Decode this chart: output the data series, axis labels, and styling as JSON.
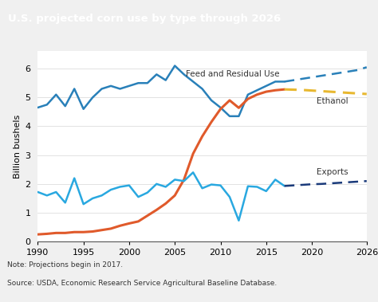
{
  "title": "U.S. projected corn use by type through 2026",
  "title_bg_color": "#0d4a5e",
  "title_text_color": "#ffffff",
  "ylabel": "Billion bushels",
  "note": "Note: Projections begin in 2017.\nSource: USDA, Economic Research Service Agricultural Baseline Database.",
  "xlim": [
    1990,
    2026
  ],
  "ylim": [
    0,
    6.6
  ],
  "yticks": [
    0,
    1,
    2,
    3,
    4,
    5,
    6
  ],
  "xticks": [
    1990,
    1995,
    2000,
    2005,
    2010,
    2015,
    2020,
    2026
  ],
  "projection_start": 2017,
  "feed_years": [
    1990,
    1991,
    1992,
    1993,
    1994,
    1995,
    1996,
    1997,
    1998,
    1999,
    2000,
    2001,
    2002,
    2003,
    2004,
    2005,
    2006,
    2007,
    2008,
    2009,
    2010,
    2011,
    2012,
    2013,
    2014,
    2015,
    2016,
    2017,
    2018,
    2019,
    2020,
    2021,
    2022,
    2023,
    2024,
    2025,
    2026
  ],
  "feed_values": [
    4.65,
    4.75,
    5.1,
    4.7,
    5.3,
    4.6,
    5.0,
    5.3,
    5.4,
    5.3,
    5.4,
    5.5,
    5.5,
    5.8,
    5.6,
    6.1,
    5.8,
    5.55,
    5.3,
    4.9,
    4.65,
    4.35,
    4.35,
    5.1,
    5.25,
    5.4,
    5.55,
    5.55,
    5.6,
    5.65,
    5.7,
    5.75,
    5.8,
    5.85,
    5.9,
    5.95,
    6.05
  ],
  "ethanol_years": [
    1990,
    1991,
    1992,
    1993,
    1994,
    1995,
    1996,
    1997,
    1998,
    1999,
    2000,
    2001,
    2002,
    2003,
    2004,
    2005,
    2006,
    2007,
    2008,
    2009,
    2010,
    2011,
    2012,
    2013,
    2014,
    2015,
    2016,
    2017,
    2018,
    2019,
    2020,
    2021,
    2022,
    2023,
    2024,
    2025,
    2026
  ],
  "ethanol_values": [
    0.25,
    0.27,
    0.3,
    0.3,
    0.33,
    0.33,
    0.35,
    0.4,
    0.45,
    0.55,
    0.63,
    0.7,
    0.9,
    1.1,
    1.32,
    1.6,
    2.15,
    3.05,
    3.65,
    4.15,
    4.6,
    4.9,
    4.64,
    4.95,
    5.1,
    5.2,
    5.25,
    5.28,
    5.27,
    5.26,
    5.24,
    5.22,
    5.2,
    5.18,
    5.16,
    5.14,
    5.12
  ],
  "exports_years": [
    1990,
    1991,
    1992,
    1993,
    1994,
    1995,
    1996,
    1997,
    1998,
    1999,
    2000,
    2001,
    2002,
    2003,
    2004,
    2005,
    2006,
    2007,
    2008,
    2009,
    2010,
    2011,
    2012,
    2013,
    2014,
    2015,
    2016,
    2017,
    2018,
    2019,
    2020,
    2021,
    2022,
    2023,
    2024,
    2025,
    2026
  ],
  "exports_values": [
    1.72,
    1.6,
    1.72,
    1.35,
    2.2,
    1.3,
    1.5,
    1.6,
    1.8,
    1.9,
    1.95,
    1.55,
    1.7,
    2.0,
    1.9,
    2.15,
    2.1,
    2.4,
    1.85,
    1.98,
    1.95,
    1.55,
    0.73,
    1.92,
    1.9,
    1.75,
    2.15,
    1.93,
    1.95,
    1.97,
    1.99,
    2.0,
    2.02,
    2.04,
    2.06,
    2.08,
    2.1
  ],
  "feed_color_hist": "#2980b9",
  "feed_color_proj": "#2980b9",
  "ethanol_color_hist": "#e05a2b",
  "ethanol_color_proj": "#e8b830",
  "exports_color_hist": "#29a8e0",
  "exports_color_proj": "#1a3a7a",
  "label_feed": "Feed and Residual Use",
  "label_ethanol": "Ethanol",
  "label_exports": "Exports",
  "bg_color": "#f0f0f0",
  "plot_bg_color": "#ffffff"
}
